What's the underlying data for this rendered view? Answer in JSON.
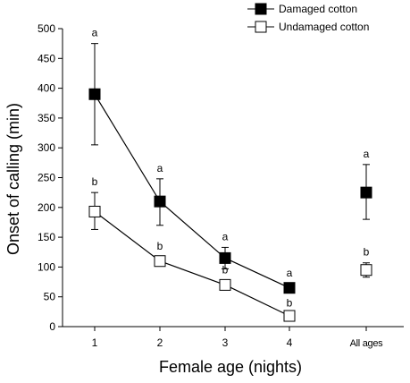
{
  "chart_data": {
    "type": "line",
    "title": "",
    "xlabel": "Female age (nights)",
    "ylabel": "Onset of calling (min)",
    "ylim": [
      0,
      500
    ],
    "yticks": [
      0,
      50,
      100,
      150,
      200,
      250,
      300,
      350,
      400,
      450,
      500
    ],
    "categories": [
      "1",
      "2",
      "3",
      "4",
      "All ages"
    ],
    "grid": false,
    "legend_position": "top-right",
    "series": [
      {
        "name": "Damaged cotton",
        "marker": "filled-square",
        "color": "#000000",
        "values": [
          390,
          210,
          115,
          65,
          225
        ],
        "error_low": [
          305,
          170,
          97,
          58,
          180
        ],
        "error_high": [
          475,
          248,
          133,
          72,
          272
        ],
        "sig_letters": [
          "a",
          "a",
          "a",
          "a",
          "a"
        ]
      },
      {
        "name": "Undamaged cotton",
        "marker": "open-square",
        "color": "#000000",
        "values": [
          193,
          110,
          70,
          18,
          95
        ],
        "error_low": [
          163,
          103,
          63,
          12,
          83
        ],
        "error_high": [
          225,
          117,
          77,
          22,
          107
        ],
        "sig_letters": [
          "b",
          "b",
          "b",
          "b",
          "b"
        ]
      }
    ],
    "connected_categories": [
      "1",
      "2",
      "3",
      "4"
    ]
  }
}
